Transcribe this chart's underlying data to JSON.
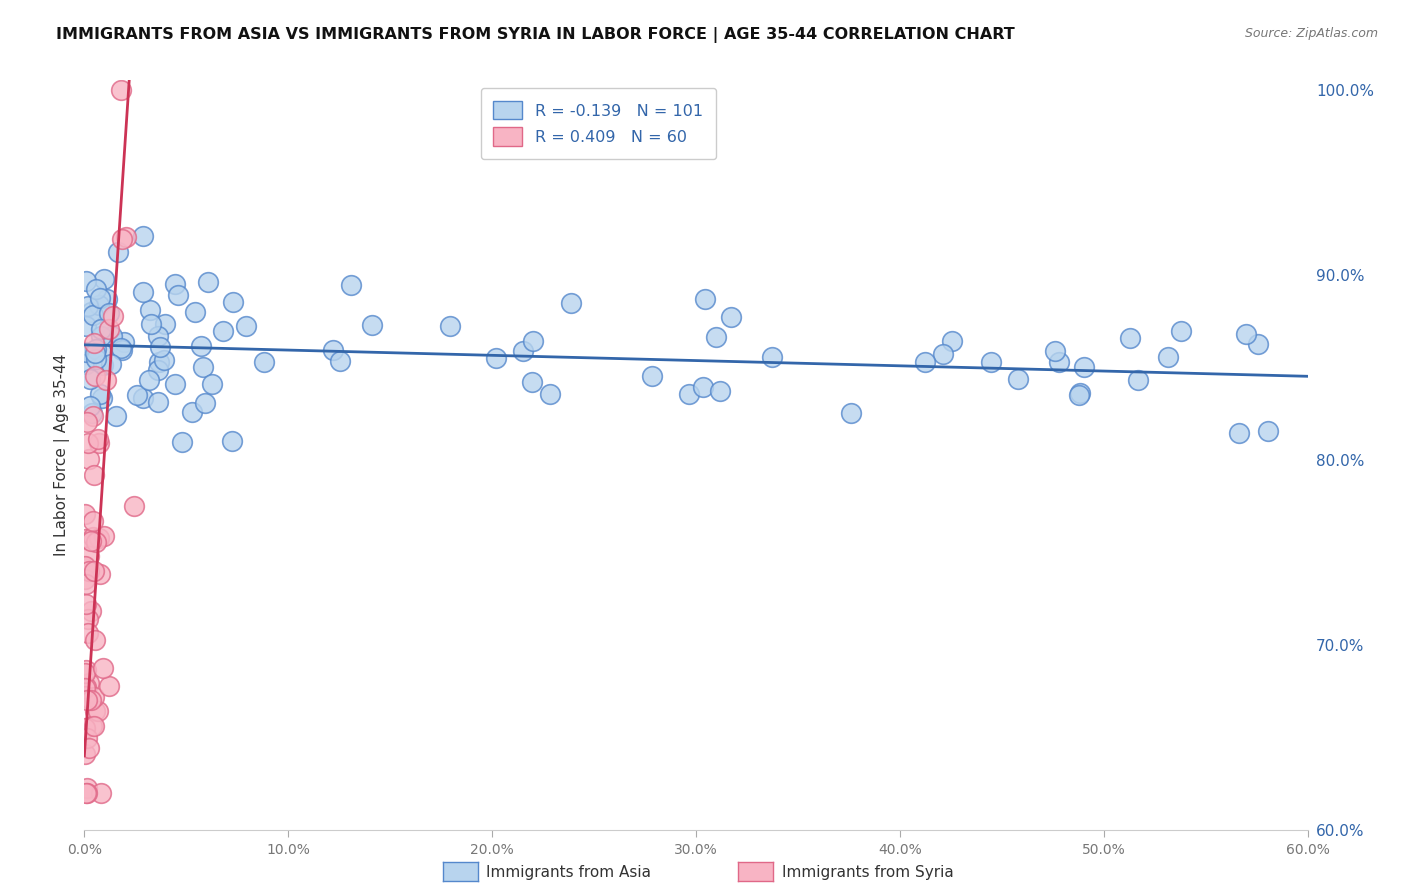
{
  "title": "IMMIGRANTS FROM ASIA VS IMMIGRANTS FROM SYRIA IN LABOR FORCE | AGE 35-44 CORRELATION CHART",
  "source": "Source: ZipAtlas.com",
  "ylabel": "In Labor Force | Age 35-44",
  "xlim": [
    0.0,
    0.6
  ],
  "ylim": [
    0.6,
    1.005
  ],
  "yticks": [
    0.6,
    0.7,
    0.8,
    0.9,
    1.0
  ],
  "ytick_labels": [
    "60.0%",
    "70.0%",
    "80.0%",
    "90.0%",
    "100.0%"
  ],
  "xticks": [
    0.0,
    0.1,
    0.2,
    0.3,
    0.4,
    0.5,
    0.6
  ],
  "xtick_labels": [
    "0.0%",
    "10.0%",
    "20.0%",
    "30.0%",
    "40.0%",
    "50.0%",
    "60.0%"
  ],
  "blue_color": "#b8d4ee",
  "pink_color": "#f8b4c4",
  "blue_edge": "#5588cc",
  "pink_edge": "#e06888",
  "trend_blue": "#3366aa",
  "trend_pink": "#cc3355",
  "legend_r_blue": "-0.139",
  "legend_n_blue": "101",
  "legend_r_pink": "0.409",
  "legend_n_pink": "60",
  "legend_label_blue": "Immigrants from Asia",
  "legend_label_pink": "Immigrants from Syria"
}
